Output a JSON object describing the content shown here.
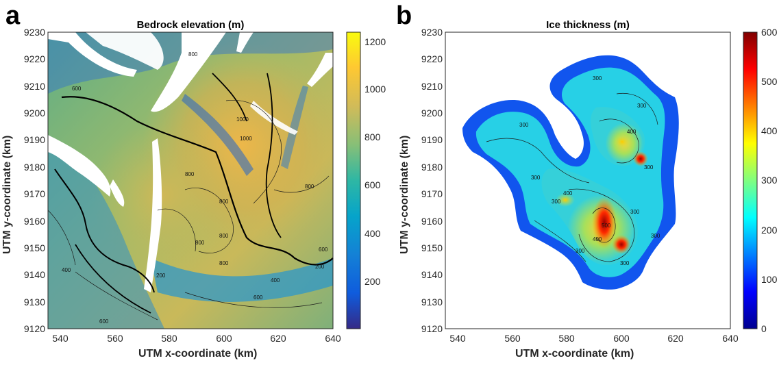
{
  "panels": {
    "a": {
      "letter": "a",
      "title": "Bedrock elevation (m)",
      "xlabel": "UTM x-coordinate (km)",
      "ylabel": "UTM y-coordinate (km)",
      "xticks": [
        "540",
        "560",
        "580",
        "600",
        "620",
        "640"
      ],
      "yticks": [
        "9230",
        "9220",
        "9210",
        "9200",
        "9190",
        "9180",
        "9170",
        "9160",
        "9150",
        "9140",
        "9130",
        "9120"
      ],
      "colorbar_ticks": [
        "1200",
        "1000",
        "800",
        "600",
        "400",
        "200"
      ],
      "contour_labels": [
        "1000",
        "1000",
        "800",
        "800",
        "800",
        "800",
        "800",
        "800",
        "600",
        "600",
        "600",
        "400",
        "400",
        "200",
        "200",
        "800",
        "600"
      ],
      "colormap": "parula"
    },
    "b": {
      "letter": "b",
      "title": "Ice thickness (m)",
      "xlabel": "UTM x-coordinate (km)",
      "ylabel": "UTM y-coordinate (km)",
      "xticks": [
        "540",
        "560",
        "580",
        "600",
        "620",
        "640"
      ],
      "yticks": [
        "9230",
        "9220",
        "9210",
        "9200",
        "9190",
        "9180",
        "9170",
        "9160",
        "9150",
        "9140",
        "9130",
        "9120"
      ],
      "colorbar_ticks": [
        "600",
        "500",
        "400",
        "300",
        "200",
        "100",
        "0"
      ],
      "contour_labels": [
        "300",
        "300",
        "300",
        "300",
        "300",
        "300",
        "400",
        "400",
        "400",
        "500",
        "300",
        "300",
        "300",
        "300"
      ],
      "colormap": "jet"
    }
  },
  "chart_data": [
    {
      "type": "heatmap",
      "title": "Bedrock elevation (m)",
      "xlabel": "UTM x-coordinate (km)",
      "ylabel": "UTM y-coordinate (km)",
      "xlim": [
        535,
        640
      ],
      "ylim": [
        9120,
        9230
      ],
      "colorbar": {
        "min": 0,
        "max": 1250,
        "ticks": [
          200,
          400,
          600,
          800,
          1000,
          1200
        ]
      },
      "contour_levels": [
        200,
        400,
        600,
        800,
        1000
      ]
    },
    {
      "type": "heatmap",
      "title": "Ice thickness (m)",
      "xlabel": "UTM x-coordinate (km)",
      "ylabel": "UTM y-coordinate (km)",
      "xlim": [
        535,
        640
      ],
      "ylim": [
        9120,
        9230
      ],
      "colorbar": {
        "min": 0,
        "max": 600,
        "ticks": [
          0,
          100,
          200,
          300,
          400,
          500,
          600
        ]
      },
      "contour_levels": [
        100,
        200,
        300,
        400,
        500
      ]
    }
  ]
}
